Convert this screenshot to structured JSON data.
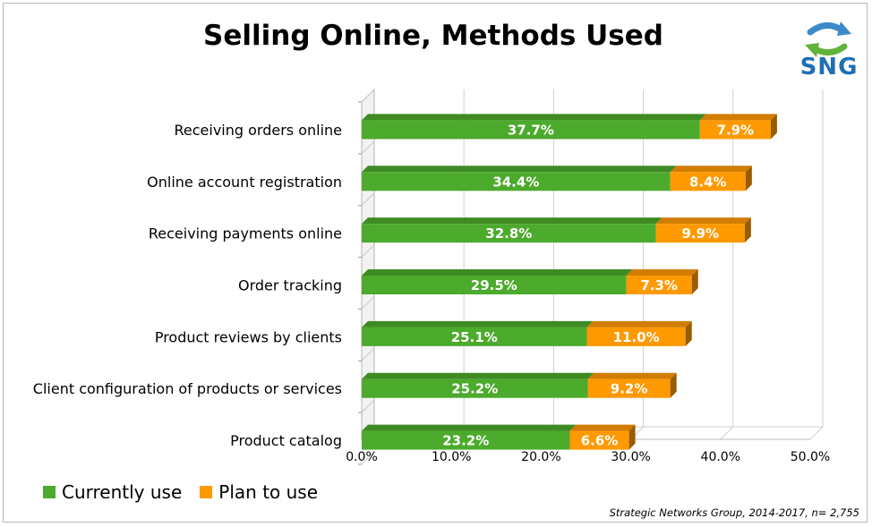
{
  "chart_data": {
    "type": "bar",
    "orientation": "horizontal",
    "stacked": true,
    "title": "Selling Online, Methods Used",
    "categories": [
      "Receiving orders online",
      "Online account registration",
      "Receiving payments online",
      "Order tracking",
      "Product reviews by clients",
      "Client configuration of products or services",
      "Product catalog"
    ],
    "series": [
      {
        "name": "Currently use",
        "color": "#4caa2c",
        "values": [
          37.7,
          34.4,
          32.8,
          29.5,
          25.1,
          25.2,
          23.2
        ]
      },
      {
        "name": "Plan to use",
        "color": "#ff9900",
        "values": [
          7.9,
          8.4,
          9.9,
          7.3,
          11.0,
          9.2,
          6.6
        ]
      }
    ],
    "data_labels": [
      [
        "37.7%",
        "34.4%",
        "32.8%",
        "29.5%",
        "25.1%",
        "25.2%",
        "23.2%"
      ],
      [
        "7.9%",
        "8.4%",
        "9.9%",
        "7.3%",
        "11.0%",
        "9.2%",
        "6.6%"
      ]
    ],
    "xlim": [
      0,
      50
    ],
    "x_ticks": [
      "0.0%",
      "10.0%",
      "20.0%",
      "30.0%",
      "40.0%",
      "50.0%"
    ],
    "grid": true,
    "legend_position": "bottom-left",
    "source": "Strategic Networks Group, 2014-2017, n= 2,755",
    "logo_text": "SNG"
  }
}
